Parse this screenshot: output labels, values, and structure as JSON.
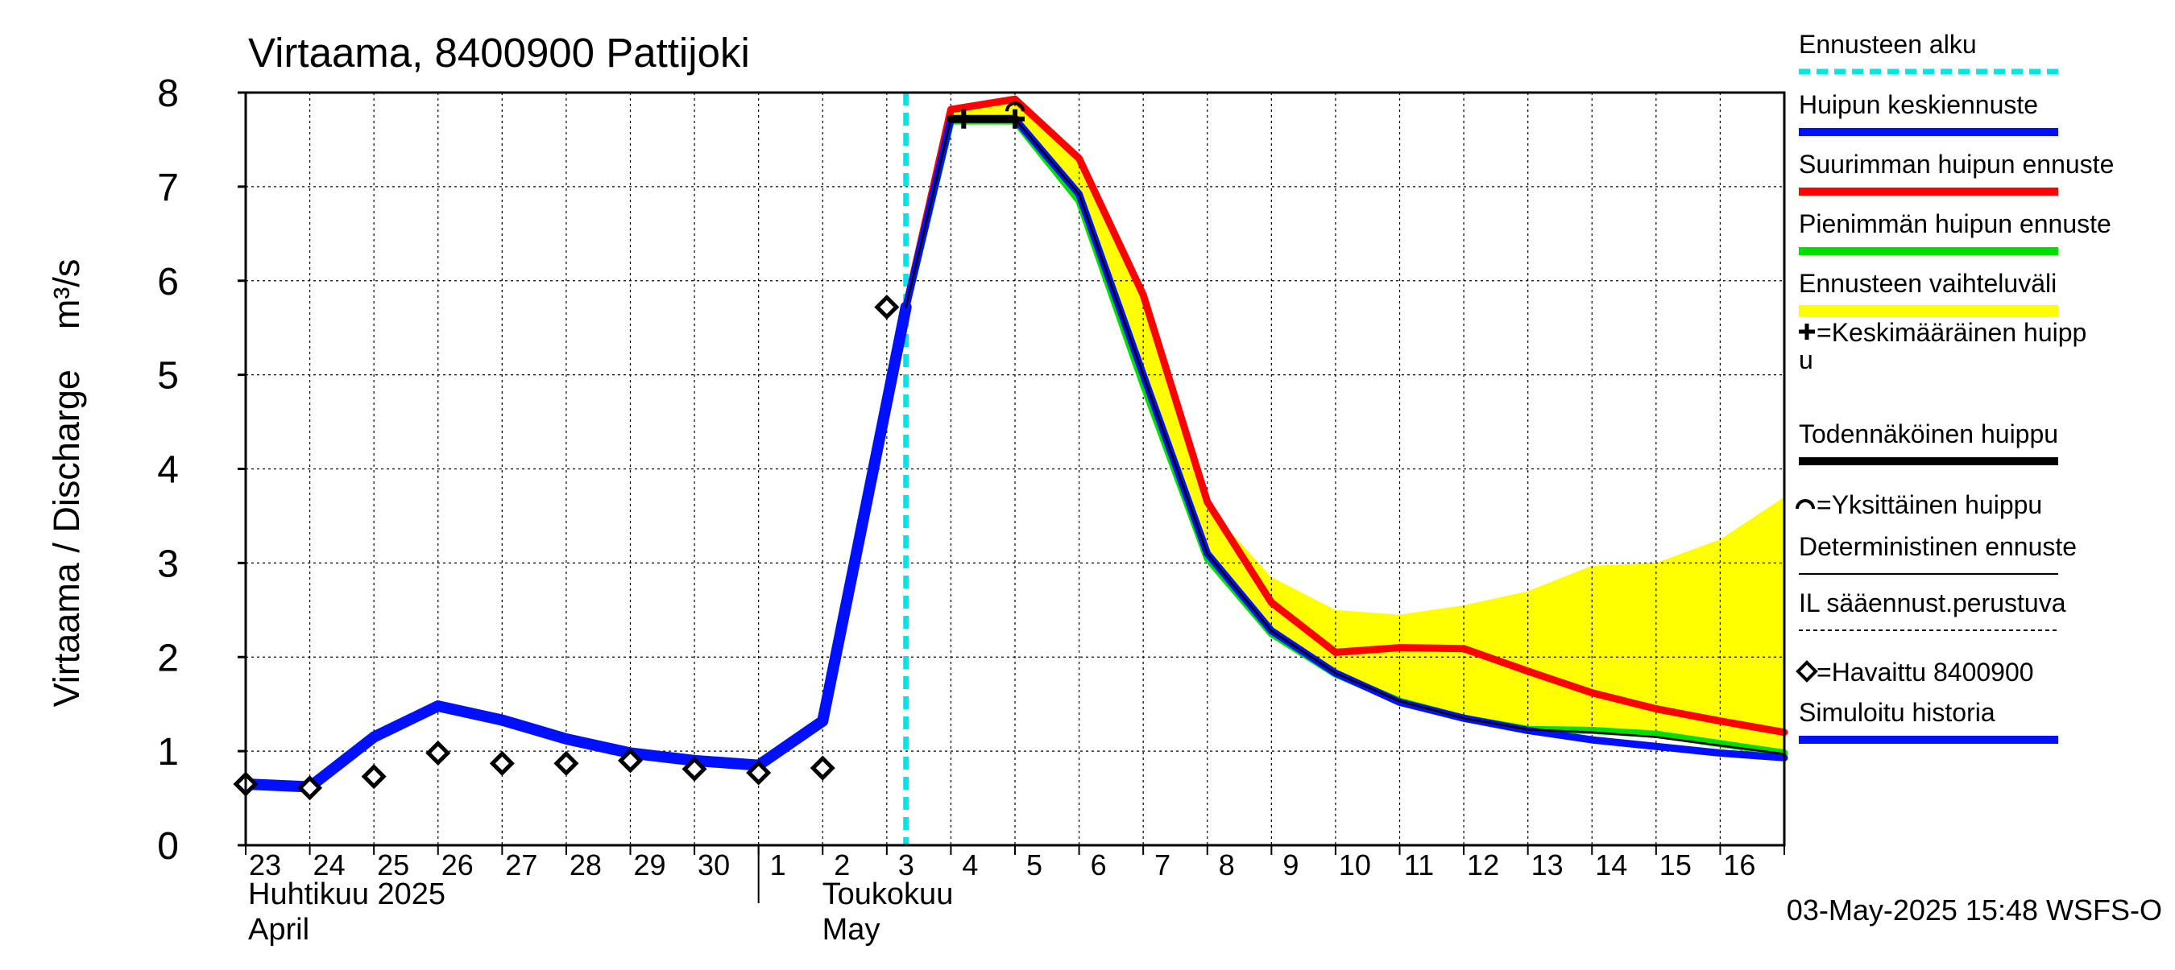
{
  "chart_data": {
    "type": "line",
    "title": "Virtaama, 8400900 Pattijoki",
    "ylabel": "Virtaama / Discharge    m³/s",
    "ylim": [
      0,
      8
    ],
    "yticks": [
      "0",
      "1",
      "2",
      "3",
      "4",
      "5",
      "6",
      "7",
      "8"
    ],
    "x_days": [
      "23",
      "24",
      "25",
      "26",
      "27",
      "28",
      "29",
      "30",
      "1",
      "2",
      "3",
      "4",
      "5",
      "6",
      "7",
      "8",
      "9",
      "10",
      "11",
      "12",
      "13",
      "14",
      "15",
      "16"
    ],
    "x_range_days": [
      0,
      24
    ],
    "months": [
      {
        "fi": "Huhtikuu  2025",
        "en": "April",
        "start_day": 0
      },
      {
        "fi": "Toukokuu",
        "en": "May",
        "start_day": 8
      }
    ],
    "forecast_start_day": 10.3,
    "grid": true,
    "timestamp": "03-May-2025 15:48 WSFS-O",
    "legend": [
      {
        "label": "Ennusteen alku",
        "style": "dashed",
        "color": "#00e5e5"
      },
      {
        "label": "Huipun keskiennuste",
        "style": "line",
        "color": "#0010ff"
      },
      {
        "label": "Suurimman huipun ennuste",
        "style": "line",
        "color": "#ff0000"
      },
      {
        "label": "Pienimmän huipun ennuste",
        "style": "line",
        "color": "#00dd00"
      },
      {
        "label": "Ennusteen vaihteluväli",
        "style": "band",
        "color": "#ffff00"
      },
      {
        "label": "=Keskimääräinen huipp\nu",
        "style": "plus-marker",
        "color": "#000000"
      },
      {
        "label": "Todennäköinen huippu",
        "style": "thick-line",
        "color": "#000000"
      },
      {
        "label": "=Yksittäinen huippu",
        "style": "arc-marker",
        "color": "#000000"
      },
      {
        "label": "Deterministinen ennuste",
        "style": "thin-line",
        "color": "#000000"
      },
      {
        "label": "IL sääennust.perustuva",
        "style": "dotted-line",
        "color": "#000000"
      },
      {
        "label": "=Havaittu 8400900",
        "style": "diamond-marker",
        "color": "#000000"
      },
      {
        "label": "Simuloitu historia",
        "style": "line",
        "color": "#0010ff"
      }
    ],
    "series": [
      {
        "name": "Ennusteen vaihteluväli",
        "kind": "band",
        "color": "#ffff00",
        "x": [
          10.3,
          11,
          12,
          13,
          14,
          15,
          16,
          17,
          18,
          19,
          20,
          21,
          22,
          23,
          24
        ],
        "upper": [
          5.72,
          7.78,
          7.9,
          7.3,
          5.85,
          3.6,
          2.85,
          2.5,
          2.45,
          2.55,
          2.7,
          2.97,
          3.0,
          3.25,
          3.7
        ],
        "lower": [
          5.72,
          7.7,
          7.7,
          6.8,
          4.9,
          3.0,
          2.25,
          1.82,
          1.55,
          1.35,
          1.22,
          1.2,
          1.15,
          1.05,
          0.98
        ]
      },
      {
        "name": "Simuloitu historia",
        "kind": "line",
        "color": "#0010ff",
        "x": [
          0,
          1,
          2,
          3,
          4,
          5,
          6,
          7,
          8,
          9,
          10.3
        ],
        "y": [
          0.65,
          0.62,
          1.15,
          1.48,
          1.33,
          1.13,
          0.98,
          0.9,
          0.85,
          1.32,
          5.72
        ]
      },
      {
        "name": "Suurimman huipun ennuste",
        "kind": "line",
        "color": "#ff0000",
        "x": [
          10.3,
          11,
          12,
          13,
          14,
          15,
          16,
          17,
          18,
          19,
          20,
          21,
          22,
          23,
          24
        ],
        "y": [
          5.72,
          7.82,
          7.93,
          7.3,
          5.85,
          3.65,
          2.58,
          2.05,
          2.1,
          2.09,
          1.85,
          1.62,
          1.45,
          1.32,
          1.2
        ]
      },
      {
        "name": "Pienimmän huipun ennuste",
        "kind": "line",
        "color": "#00dd00",
        "x": [
          10.3,
          11,
          12,
          13,
          14,
          15,
          16,
          17,
          18,
          19,
          20,
          21,
          22,
          23,
          24
        ],
        "y": [
          5.72,
          7.7,
          7.7,
          6.85,
          4.9,
          3.05,
          2.25,
          1.82,
          1.53,
          1.35,
          1.23,
          1.22,
          1.18,
          1.08,
          0.98
        ]
      },
      {
        "name": "Huipun keskiennuste",
        "kind": "line",
        "color": "#0010ff",
        "x": [
          10.3,
          11,
          12,
          13,
          14,
          15,
          16,
          17,
          18,
          19,
          20,
          21,
          22,
          23,
          24
        ],
        "y": [
          5.72,
          7.72,
          7.72,
          6.92,
          5.0,
          3.1,
          2.28,
          1.83,
          1.52,
          1.35,
          1.22,
          1.12,
          1.05,
          0.98,
          0.93
        ]
      },
      {
        "name": "Deterministinen ennuste",
        "kind": "line",
        "color": "#000000",
        "x": [
          10.3,
          11,
          12,
          13,
          14,
          15,
          16,
          17,
          18,
          19,
          20,
          21,
          22,
          23,
          24
        ],
        "y": [
          5.72,
          7.72,
          7.72,
          6.92,
          5.0,
          3.1,
          2.28,
          1.83,
          1.53,
          1.35,
          1.23,
          1.2,
          1.15,
          1.06,
          0.97
        ]
      },
      {
        "name": "Todennäköinen huippu",
        "kind": "line",
        "color": "#000000",
        "x": [
          11,
          12
        ],
        "y": [
          7.72,
          7.72
        ]
      },
      {
        "name": "Havaittu 8400900",
        "kind": "markers",
        "marker": "diamond",
        "color": "#000000",
        "x": [
          0,
          1,
          2,
          3,
          4,
          5,
          6,
          7,
          8,
          9,
          10
        ],
        "y": [
          0.65,
          0.61,
          0.73,
          0.98,
          0.87,
          0.87,
          0.9,
          0.81,
          0.77,
          0.82,
          5.72
        ]
      }
    ],
    "peak_markers": [
      {
        "type": "plus",
        "x": 12,
        "y": 7.72
      },
      {
        "type": "plus",
        "x": 11.2,
        "y": 7.72
      },
      {
        "type": "arc",
        "x": 12,
        "y": 7.87
      }
    ]
  }
}
